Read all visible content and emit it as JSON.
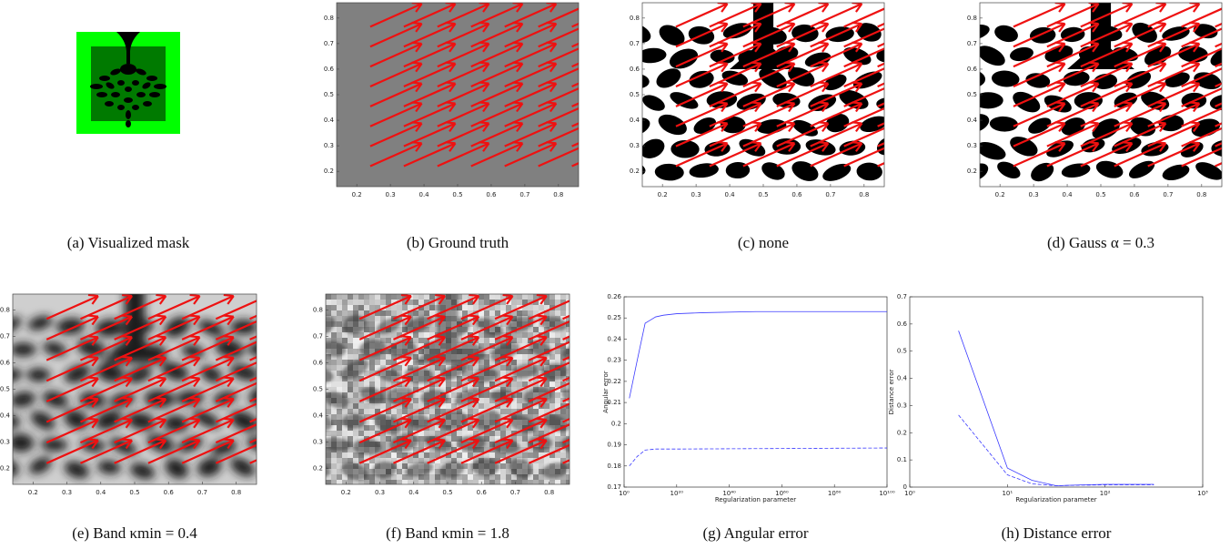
{
  "images": [
    {
      "caption": "(a) Visualized mask",
      "style": "mask"
    },
    {
      "caption": "(b) Ground truth",
      "style": "gray",
      "quiver": true,
      "xlim": [
        0.14,
        0.86
      ],
      "ylim": [
        0.14,
        0.86
      ],
      "xticks": [
        0.2,
        0.3,
        0.4,
        0.5,
        0.6,
        0.7,
        0.8
      ],
      "yticks": [
        0.2,
        0.3,
        0.4,
        0.5,
        0.6,
        0.7,
        0.8
      ]
    },
    {
      "caption": "(c) none",
      "style": "binary",
      "quiver": true,
      "xlim": [
        0.14,
        0.86
      ],
      "ylim": [
        0.14,
        0.86
      ],
      "xticks": [
        0.2,
        0.3,
        0.4,
        0.5,
        0.6,
        0.7,
        0.8
      ],
      "yticks": [
        0.2,
        0.3,
        0.4,
        0.5,
        0.6,
        0.7,
        0.8
      ]
    },
    {
      "caption": "(d) Gauss α = 0.3",
      "style": "binary",
      "quiver": true,
      "xlim": [
        0.14,
        0.86
      ],
      "ylim": [
        0.14,
        0.86
      ],
      "xticks": [
        0.2,
        0.3,
        0.4,
        0.5,
        0.6,
        0.7,
        0.8
      ],
      "yticks": [
        0.2,
        0.3,
        0.4,
        0.5,
        0.6,
        0.7,
        0.8
      ]
    },
    {
      "caption": "(e) Band κmin = 0.4",
      "style": "blurred",
      "quiver": true,
      "xlim": [
        0.14,
        0.86
      ],
      "ylim": [
        0.14,
        0.86
      ],
      "xticks": [
        0.2,
        0.3,
        0.4,
        0.5,
        0.6,
        0.7,
        0.8
      ],
      "yticks": [
        0.2,
        0.3,
        0.4,
        0.5,
        0.6,
        0.7,
        0.8
      ]
    },
    {
      "caption": "(f) Band κmin = 1.8",
      "style": "noisy",
      "quiver": true,
      "xlim": [
        0.14,
        0.86
      ],
      "ylim": [
        0.14,
        0.86
      ],
      "xticks": [
        0.2,
        0.3,
        0.4,
        0.5,
        0.6,
        0.7,
        0.8
      ],
      "yticks": [
        0.2,
        0.3,
        0.4,
        0.5,
        0.6,
        0.7,
        0.8
      ]
    }
  ],
  "chart_data": [
    {
      "type": "line",
      "caption": "(g) Angular error",
      "xlabel": "Regularization parameter",
      "ylabel": "Angular error",
      "xscale": "log",
      "xlim": [
        1,
        1e+100
      ],
      "ylim": [
        0.17,
        0.26
      ],
      "xticks": [
        {
          "value": 1,
          "label": "10⁰"
        },
        {
          "value": 1e+20,
          "label": "10²⁰"
        },
        {
          "value": 1e+40,
          "label": "10⁴⁰"
        },
        {
          "value": 1e+60,
          "label": "10⁶⁰"
        },
        {
          "value": 1e+80,
          "label": "10⁸⁰"
        },
        {
          "value": 1e+100,
          "label": "10¹⁰⁰"
        }
      ],
      "yticks": [
        0.17,
        0.18,
        0.19,
        0.2,
        0.21,
        0.22,
        0.23,
        0.24,
        0.25,
        0.26
      ],
      "series": [
        {
          "color": "#3a3aff",
          "dashed": false,
          "x": [
            100.0,
            100000.0,
            100000000.0,
            10000000000.0,
            1000000000000.0,
            1000000000000000.0,
            1e+20,
            1e+30,
            1e+50,
            1e+100
          ],
          "values": [
            0.212,
            0.23,
            0.2475,
            0.249,
            0.2505,
            0.2513,
            0.252,
            0.2525,
            0.253,
            0.253
          ]
        },
        {
          "color": "#3a3aff",
          "dashed": true,
          "x": [
            100.0,
            100000.0,
            100000000.0,
            1000000000000.0,
            1e+20,
            1e+100
          ],
          "values": [
            0.18,
            0.1845,
            0.1875,
            0.188,
            0.188,
            0.1885
          ]
        }
      ]
    },
    {
      "type": "line",
      "caption": "(h) Distance error",
      "xlabel": "Regularization parameter",
      "ylabel": "Distance error",
      "xscale": "log",
      "xlim": [
        1,
        1000
      ],
      "ylim": [
        0,
        0.7
      ],
      "xticks": [
        {
          "value": 1,
          "label": "10⁰"
        },
        {
          "value": 10,
          "label": "10¹"
        },
        {
          "value": 100,
          "label": "10²"
        },
        {
          "value": 1000,
          "label": "10³"
        }
      ],
      "yticks": [
        0,
        0.1,
        0.2,
        0.3,
        0.4,
        0.5,
        0.6,
        0.7
      ],
      "series": [
        {
          "color": "#3a3aff",
          "dashed": false,
          "x": [
            3.16,
            10,
            17.8,
            31.6,
            56.2,
            100,
            316
          ],
          "values": [
            0.575,
            0.07,
            0.025,
            0.005,
            0.008,
            0.01,
            0.01
          ]
        },
        {
          "color": "#3a3aff",
          "dashed": true,
          "x": [
            3.16,
            10,
            17.8,
            31.6,
            56.2,
            100,
            316
          ],
          "values": [
            0.265,
            0.045,
            0.012,
            0.005,
            0.007,
            0.008,
            0.008
          ]
        }
      ]
    }
  ]
}
